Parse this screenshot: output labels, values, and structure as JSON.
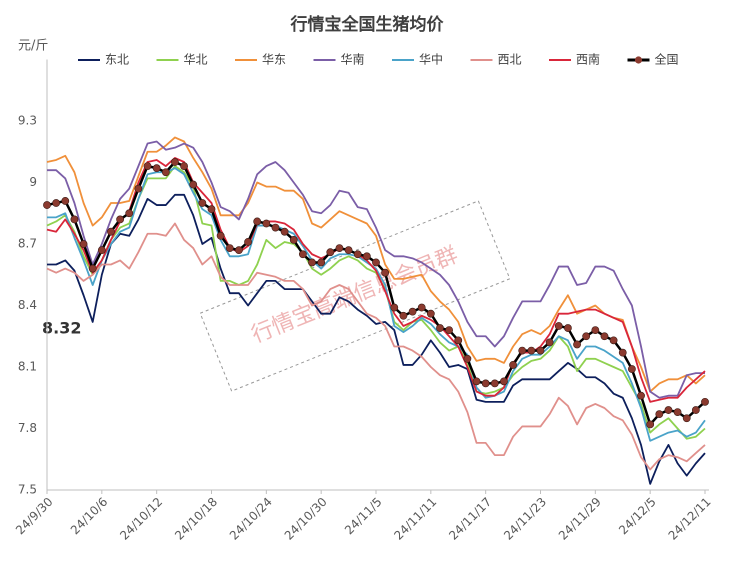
{
  "chart_data": {
    "type": "line",
    "title": "行情宝全国生猪均价",
    "y_axis_label": "元/斤",
    "annotation": "8.32",
    "watermark": "行情宝高端信息会员群",
    "categories": [
      "24/9/30",
      null,
      null,
      null,
      null,
      null,
      "24/10/6",
      null,
      null,
      null,
      null,
      null,
      "24/10/12",
      null,
      null,
      null,
      null,
      null,
      "24/10/18",
      null,
      null,
      null,
      null,
      null,
      "24/10/24",
      null,
      null,
      null,
      null,
      null,
      "24/10/30",
      null,
      null,
      null,
      null,
      null,
      "24/11/5",
      null,
      null,
      null,
      null,
      null,
      "24/11/11",
      null,
      null,
      null,
      null,
      null,
      "24/11/17",
      null,
      null,
      null,
      null,
      null,
      "24/11/23",
      null,
      null,
      null,
      null,
      null,
      "24/11/29",
      null,
      null,
      null,
      null,
      null,
      "24/12/5",
      null,
      null,
      null,
      null,
      null,
      "24/12/11"
    ],
    "ylim": [
      7.5,
      9.6
    ],
    "yticks": [
      7.5,
      7.8,
      8.1,
      8.4,
      8.7,
      9,
      9.3
    ],
    "grid": false,
    "legend": "top",
    "series": [
      {
        "name": "东北",
        "color": "#0d1f5c",
        "values": [
          8.6,
          8.6,
          8.62,
          8.57,
          8.45,
          8.32,
          8.55,
          8.7,
          8.75,
          8.74,
          8.82,
          8.92,
          8.89,
          8.89,
          8.94,
          8.94,
          8.84,
          8.7,
          8.73,
          8.58,
          8.46,
          8.46,
          8.4,
          8.46,
          8.52,
          8.52,
          8.48,
          8.48,
          8.48,
          8.42,
          8.36,
          8.36,
          8.44,
          8.42,
          8.38,
          8.35,
          8.31,
          8.32,
          8.28,
          8.11,
          8.11,
          8.16,
          8.23,
          8.17,
          8.1,
          8.11,
          8.09,
          7.94,
          7.93,
          7.93,
          7.93,
          8.01,
          8.04,
          8.04,
          8.04,
          8.04,
          8.08,
          8.12,
          8.09,
          8.05,
          8.05,
          8.02,
          7.97,
          7.95,
          7.85,
          7.72,
          7.53,
          7.64,
          7.72,
          7.63,
          7.57,
          7.63,
          7.68
        ]
      },
      {
        "name": "华北",
        "color": "#8fd14f",
        "values": [
          8.79,
          8.81,
          8.84,
          8.76,
          8.64,
          8.55,
          8.62,
          8.72,
          8.78,
          8.8,
          8.92,
          9.02,
          9.02,
          9.02,
          9.08,
          9.05,
          8.98,
          8.8,
          8.79,
          8.52,
          8.52,
          8.5,
          8.52,
          8.6,
          8.72,
          8.68,
          8.71,
          8.7,
          8.66,
          8.58,
          8.55,
          8.58,
          8.62,
          8.64,
          8.62,
          8.58,
          8.56,
          8.48,
          8.32,
          8.28,
          8.32,
          8.33,
          8.28,
          8.22,
          8.18,
          8.2,
          8.12,
          7.98,
          7.97,
          7.98,
          8.0,
          8.06,
          8.1,
          8.13,
          8.14,
          8.18,
          8.25,
          8.2,
          8.08,
          8.14,
          8.14,
          8.12,
          8.1,
          8.08,
          8.0,
          7.92,
          7.78,
          7.82,
          7.85,
          7.8,
          7.75,
          7.76,
          7.8
        ]
      },
      {
        "name": "华东",
        "color": "#f0903a",
        "values": [
          9.1,
          9.11,
          9.13,
          9.05,
          8.9,
          8.79,
          8.83,
          8.9,
          8.9,
          8.91,
          9.03,
          9.15,
          9.15,
          9.18,
          9.22,
          9.2,
          9.12,
          9.05,
          8.97,
          8.84,
          8.84,
          8.84,
          8.9,
          9.0,
          8.98,
          8.98,
          8.96,
          8.96,
          8.92,
          8.8,
          8.78,
          8.82,
          8.86,
          8.84,
          8.82,
          8.8,
          8.74,
          8.6,
          8.53,
          8.53,
          8.54,
          8.55,
          8.47,
          8.42,
          8.38,
          8.32,
          8.2,
          8.13,
          8.14,
          8.14,
          8.12,
          8.2,
          8.26,
          8.28,
          8.26,
          8.3,
          8.38,
          8.45,
          8.36,
          8.38,
          8.4,
          8.36,
          8.34,
          8.33,
          8.2,
          8.1,
          7.98,
          8.02,
          8.04,
          8.04,
          8.06,
          8.02,
          8.06
        ]
      },
      {
        "name": "华南",
        "color": "#7b5ea7",
        "values": [
          9.06,
          9.06,
          9.02,
          8.9,
          8.74,
          8.6,
          8.7,
          8.82,
          8.92,
          8.97,
          9.08,
          9.19,
          9.2,
          9.16,
          9.17,
          9.19,
          9.17,
          9.1,
          9.0,
          8.88,
          8.86,
          8.82,
          8.92,
          9.04,
          9.08,
          9.1,
          9.06,
          9.0,
          8.94,
          8.86,
          8.85,
          8.89,
          8.96,
          8.95,
          8.88,
          8.87,
          8.78,
          8.67,
          8.64,
          8.64,
          8.63,
          8.61,
          8.58,
          8.55,
          8.5,
          8.42,
          8.32,
          8.25,
          8.25,
          8.2,
          8.25,
          8.34,
          8.42,
          8.42,
          8.42,
          8.5,
          8.59,
          8.59,
          8.5,
          8.51,
          8.59,
          8.59,
          8.57,
          8.48,
          8.4,
          8.2,
          7.98,
          7.95,
          7.96,
          7.96,
          8.06,
          8.07,
          8.07
        ]
      },
      {
        "name": "华中",
        "color": "#4aa3c9",
        "values": [
          8.83,
          8.83,
          8.85,
          8.73,
          8.62,
          8.5,
          8.62,
          8.7,
          8.76,
          8.78,
          8.92,
          9.04,
          9.05,
          9.05,
          9.07,
          9.04,
          8.95,
          8.87,
          8.84,
          8.72,
          8.64,
          8.64,
          8.65,
          8.79,
          8.79,
          8.79,
          8.77,
          8.75,
          8.69,
          8.62,
          8.58,
          8.63,
          8.65,
          8.65,
          8.64,
          8.61,
          8.58,
          8.5,
          8.3,
          8.27,
          8.3,
          8.34,
          8.31,
          8.26,
          8.22,
          8.2,
          8.16,
          8.0,
          7.95,
          7.96,
          7.98,
          8.08,
          8.14,
          8.16,
          8.16,
          8.2,
          8.25,
          8.23,
          8.14,
          8.2,
          8.2,
          8.18,
          8.15,
          8.12,
          8.02,
          7.9,
          7.74,
          7.76,
          7.78,
          7.79,
          7.76,
          7.78,
          7.84
        ]
      },
      {
        "name": "西北",
        "color": "#e0908c",
        "values": [
          8.58,
          8.56,
          8.58,
          8.56,
          8.52,
          8.55,
          8.6,
          8.6,
          8.62,
          8.58,
          8.66,
          8.75,
          8.75,
          8.74,
          8.8,
          8.72,
          8.68,
          8.6,
          8.64,
          8.54,
          8.5,
          8.5,
          8.5,
          8.56,
          8.55,
          8.54,
          8.52,
          8.52,
          8.48,
          8.4,
          8.42,
          8.48,
          8.5,
          8.48,
          8.42,
          8.36,
          8.34,
          8.3,
          8.2,
          8.2,
          8.18,
          8.15,
          8.1,
          8.06,
          8.04,
          7.98,
          7.88,
          7.73,
          7.73,
          7.67,
          7.67,
          7.76,
          7.81,
          7.81,
          7.81,
          7.87,
          7.95,
          7.91,
          7.82,
          7.9,
          7.92,
          7.9,
          7.86,
          7.84,
          7.77,
          7.66,
          7.6,
          7.65,
          7.67,
          7.66,
          7.64,
          7.68,
          7.72
        ]
      },
      {
        "name": "西南",
        "color": "#d9263a",
        "values": [
          8.77,
          8.76,
          8.82,
          8.75,
          8.67,
          8.56,
          8.62,
          8.72,
          8.81,
          8.86,
          9.0,
          9.1,
          9.11,
          9.08,
          9.12,
          9.1,
          9.0,
          8.95,
          8.9,
          8.77,
          8.68,
          8.66,
          8.69,
          8.8,
          8.81,
          8.81,
          8.8,
          8.77,
          8.7,
          8.65,
          8.63,
          8.65,
          8.68,
          8.67,
          8.65,
          8.62,
          8.57,
          8.47,
          8.36,
          8.3,
          8.32,
          8.35,
          8.33,
          8.3,
          8.25,
          8.2,
          8.1,
          7.98,
          7.96,
          7.96,
          8.0,
          8.12,
          8.17,
          8.17,
          8.2,
          8.26,
          8.36,
          8.36,
          8.37,
          8.38,
          8.38,
          8.36,
          8.34,
          8.32,
          8.2,
          8.05,
          7.93,
          7.94,
          7.95,
          7.95,
          8.0,
          8.04,
          8.08
        ]
      },
      {
        "name": "全国",
        "color": "#000000",
        "marker_color": "#8b3a2f",
        "values": [
          8.89,
          8.9,
          8.91,
          8.82,
          8.7,
          8.58,
          8.67,
          8.76,
          8.82,
          8.85,
          8.97,
          9.08,
          9.07,
          9.05,
          9.1,
          9.08,
          8.99,
          8.9,
          8.87,
          8.74,
          8.68,
          8.67,
          8.71,
          8.81,
          8.8,
          8.78,
          8.76,
          8.72,
          8.65,
          8.61,
          8.61,
          8.66,
          8.68,
          8.67,
          8.65,
          8.64,
          8.61,
          8.56,
          8.39,
          8.35,
          8.37,
          8.39,
          8.36,
          8.29,
          8.28,
          8.23,
          8.14,
          8.03,
          8.02,
          8.02,
          8.03,
          8.11,
          8.18,
          8.18,
          8.18,
          8.22,
          8.3,
          8.29,
          8.21,
          8.25,
          8.28,
          8.25,
          8.23,
          8.17,
          8.09,
          7.96,
          7.82,
          7.87,
          7.89,
          7.88,
          7.85,
          7.89,
          7.93
        ]
      }
    ]
  }
}
